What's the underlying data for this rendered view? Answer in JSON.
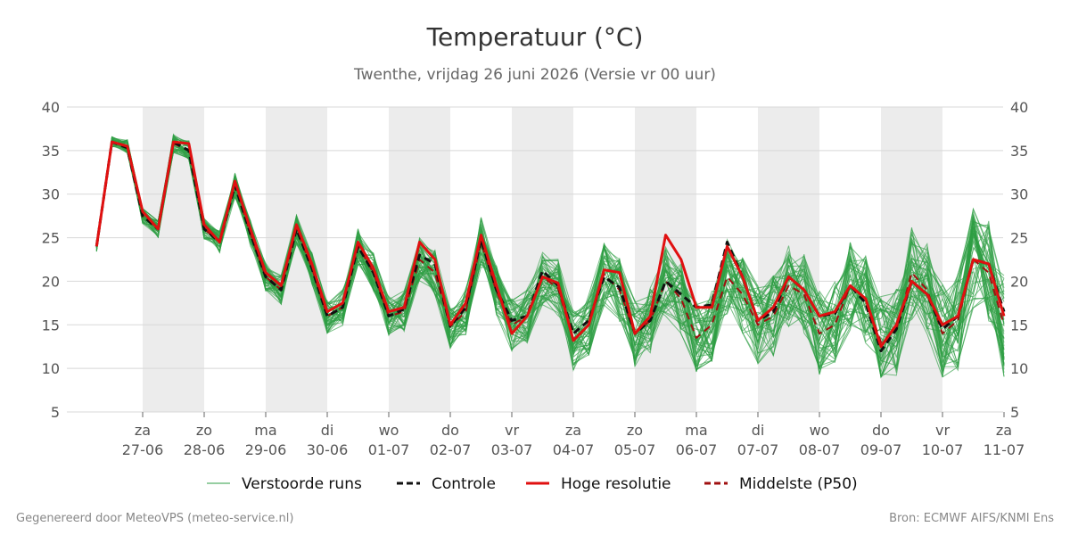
{
  "title": "Temperatuur (°C)",
  "subtitle": "Twenthe, vrijdag 26 juni 2026 (Versie vr 00 uur)",
  "footer_left": "Gegenereerd door MeteoVPS (meteo-service.nl)",
  "footer_right": "Bron: ECMWF AIFS/KNMI Ens",
  "legend": [
    {
      "label": "Verstoorde runs",
      "color": "#2e9e44",
      "style": "thin"
    },
    {
      "label": "Controle",
      "color": "#111111",
      "style": "dashed"
    },
    {
      "label": "Hoge resolutie",
      "color": "#e01010",
      "style": "solid"
    },
    {
      "label": "Middelste (P50)",
      "color": "#a01010",
      "style": "dashed"
    }
  ],
  "chart_data": {
    "type": "line",
    "title": "Temperatuur (°C)",
    "xlabel": "",
    "ylabel": "",
    "ylim": [
      5,
      40
    ],
    "yticks": [
      5,
      10,
      15,
      20,
      25,
      30,
      35,
      40
    ],
    "xlim": [
      -0.75,
      14
    ],
    "x_ticks": [
      {
        "x": 0,
        "day": "za",
        "date": "27-06"
      },
      {
        "x": 1,
        "day": "zo",
        "date": "28-06"
      },
      {
        "x": 2,
        "day": "ma",
        "date": "29-06"
      },
      {
        "x": 3,
        "day": "di",
        "date": "30-06"
      },
      {
        "x": 4,
        "day": "wo",
        "date": "01-07"
      },
      {
        "x": 5,
        "day": "do",
        "date": "02-07"
      },
      {
        "x": 6,
        "day": "vr",
        "date": "03-07"
      },
      {
        "x": 7,
        "day": "za",
        "date": "04-07"
      },
      {
        "x": 8,
        "day": "zo",
        "date": "05-07"
      },
      {
        "x": 9,
        "day": "ma",
        "date": "06-07"
      },
      {
        "x": 10,
        "day": "di",
        "date": "07-07"
      },
      {
        "x": 11,
        "day": "wo",
        "date": "08-07"
      },
      {
        "x": 12,
        "day": "do",
        "date": "09-07"
      },
      {
        "x": 13,
        "day": "vr",
        "date": "10-07"
      },
      {
        "x": 14,
        "day": "za",
        "date": "11-07"
      }
    ],
    "shaded_days": [
      [
        0,
        1
      ],
      [
        2,
        3
      ],
      [
        4,
        5
      ],
      [
        6,
        7
      ],
      [
        8,
        9
      ],
      [
        10,
        11
      ],
      [
        12,
        13
      ]
    ],
    "grid": true,
    "legend_position": "bottom",
    "x": [
      -0.75,
      -0.5,
      -0.25,
      0,
      0.25,
      0.5,
      0.75,
      1,
      1.25,
      1.5,
      1.75,
      2,
      2.25,
      2.5,
      2.75,
      3,
      3.25,
      3.5,
      3.75,
      4,
      4.25,
      4.5,
      4.75,
      5,
      5.25,
      5.5,
      5.75,
      6,
      6.25,
      6.5,
      6.75,
      7,
      7.25,
      7.5,
      7.75,
      8,
      8.25,
      8.5,
      8.75,
      9,
      9.25,
      9.5,
      9.75,
      10,
      10.25,
      10.5,
      10.75,
      11,
      11.25,
      11.5,
      11.75,
      12,
      12.25,
      12.5,
      12.75,
      13,
      13.25,
      13.5,
      13.75,
      14
    ],
    "series": [
      {
        "name": "Hoge resolutie",
        "color": "#e01010",
        "values": [
          24,
          36,
          35.5,
          28,
          26,
          36,
          35.8,
          26.5,
          24.5,
          31.5,
          26,
          21,
          19.5,
          26.5,
          22,
          16.5,
          17.5,
          24.5,
          21.5,
          16.5,
          17,
          24.5,
          22.5,
          15,
          17.5,
          25.3,
          19.5,
          14,
          16,
          20.5,
          19.8,
          13.2,
          15,
          21.3,
          21,
          14,
          16,
          25.3,
          22.5,
          17,
          17,
          24,
          20.5,
          15.5,
          17,
          20.5,
          19,
          16,
          16.5,
          19.5,
          18,
          12.5,
          15,
          20,
          18.5,
          15,
          16,
          22.5,
          22,
          16
        ]
      },
      {
        "name": "Controle",
        "color": "#111111",
        "values": [
          24,
          36,
          35.3,
          27.5,
          26,
          36,
          35,
          26,
          24.5,
          31,
          25.5,
          20.5,
          19,
          26,
          21.5,
          16,
          17,
          24,
          21,
          16,
          16.8,
          23,
          22,
          14.8,
          17,
          24.8,
          19,
          15.5,
          16,
          21.2,
          19.5,
          14,
          15.5,
          20.5,
          19.3,
          14,
          15.5,
          20,
          18.5,
          17,
          17.3,
          24.5,
          20.5,
          15.5,
          16.5,
          20.5,
          19,
          16,
          16.3,
          19.5,
          17.5,
          12,
          14.5,
          20,
          18.5,
          14.5,
          16,
          22.5,
          22,
          16.5
        ]
      },
      {
        "name": "Middelste (P50)",
        "color": "#a01010",
        "values": [
          24,
          36,
          35.5,
          27.5,
          26,
          35.8,
          35,
          26,
          24.5,
          31,
          25.5,
          20.5,
          19,
          26,
          21.5,
          16,
          17,
          24,
          21,
          16,
          16.5,
          22.5,
          21,
          14.8,
          16.5,
          24.5,
          18.8,
          15,
          16,
          20.5,
          19.2,
          13.2,
          15,
          20.8,
          19,
          14,
          15.5,
          20,
          18,
          13.5,
          15,
          20.5,
          18.5,
          15,
          16,
          19.5,
          18.5,
          14,
          15,
          19.5,
          18,
          13,
          14.5,
          21,
          19,
          14,
          15.5,
          22.5,
          21,
          15
        ]
      }
    ],
    "ensemble_members": 50
  }
}
